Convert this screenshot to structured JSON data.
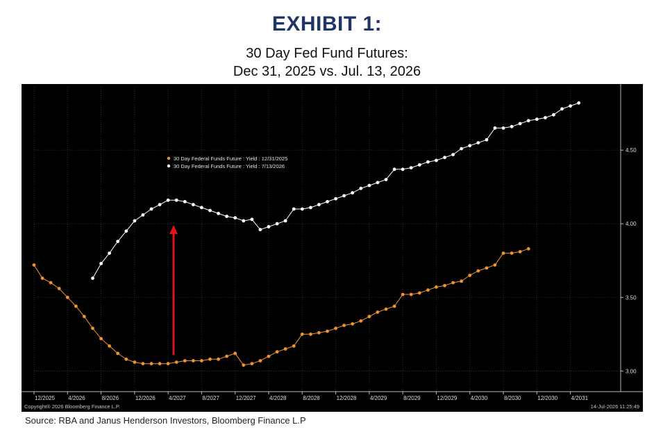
{
  "header": {
    "exhibit": "EXHIBIT 1:",
    "subtitle_line1": "30 Day Fed Fund Futures:",
    "subtitle_line2": "Dec 31, 2025 vs. Jul. 13, 2026"
  },
  "footer": {
    "source": "Source: RBA and Janus Henderson Investors, Bloomberg Finance L.P"
  },
  "chart_footer": {
    "copyright": "Copyright® 2026 Bloomberg Finance L.P.",
    "timestamp": "14-Jul-2026 11:25:49"
  },
  "colors": {
    "background": "#000000",
    "series_dec": "#f0922e",
    "series_jul": "#ffffff",
    "arrow": "#e0141e"
  },
  "chart_data": {
    "type": "line",
    "grid": true,
    "legend_position": "top-left",
    "annotation": "red upward arrow from the Dec 31, 2025 curve to the Jul 13, 2026 curve",
    "x_ticks": [
      "12/2025",
      "4/2026",
      "8/2026",
      "12/2026",
      "4/2027",
      "8/2027",
      "12/2027",
      "4/2028",
      "8/2028",
      "12/2028",
      "4/2029",
      "8/2029",
      "12/2029",
      "4/2030",
      "8/2030",
      "12/2030",
      "4/2031"
    ],
    "x_range": [
      "12/2025",
      "10/2031"
    ],
    "y_ticks": [
      "3.00",
      "3.50",
      "4.00",
      "4.50"
    ],
    "ylim": [
      2.86,
      4.93
    ],
    "series": [
      {
        "name": "30 Day Federal Funds Future : Yield : 12/31/2025",
        "color": "#f0922e",
        "start": "12/2025",
        "values": [
          3.72,
          3.63,
          3.6,
          3.56,
          3.5,
          3.44,
          3.37,
          3.29,
          3.22,
          3.17,
          3.12,
          3.08,
          3.06,
          3.05,
          3.05,
          3.05,
          3.05,
          3.06,
          3.07,
          3.07,
          3.07,
          3.08,
          3.08,
          3.1,
          3.12,
          3.04,
          3.05,
          3.07,
          3.1,
          3.13,
          3.15,
          3.17,
          3.25,
          3.25,
          3.26,
          3.27,
          3.29,
          3.31,
          3.32,
          3.34,
          3.37,
          3.4,
          3.42,
          3.44,
          3.52,
          3.52,
          3.53,
          3.55,
          3.57,
          3.58,
          3.6,
          3.61,
          3.65,
          3.68,
          3.7,
          3.72,
          3.8,
          3.8,
          3.81,
          3.83
        ]
      },
      {
        "name": "30 Day Federal Funds Future : Yield : 7/13/2026",
        "color": "#ffffff",
        "start": "7/2026",
        "values": [
          3.63,
          3.73,
          3.8,
          3.88,
          3.95,
          4.02,
          4.06,
          4.1,
          4.13,
          4.16,
          4.16,
          4.15,
          4.13,
          4.11,
          4.09,
          4.07,
          4.05,
          4.04,
          4.02,
          4.03,
          3.96,
          3.98,
          4.0,
          4.02,
          4.1,
          4.1,
          4.11,
          4.13,
          4.15,
          4.17,
          4.19,
          4.21,
          4.24,
          4.26,
          4.28,
          4.3,
          4.37,
          4.37,
          4.38,
          4.4,
          4.42,
          4.43,
          4.45,
          4.47,
          4.51,
          4.53,
          4.55,
          4.57,
          4.65,
          4.65,
          4.66,
          4.68,
          4.7,
          4.71,
          4.72,
          4.74,
          4.78,
          4.8,
          4.82
        ]
      }
    ]
  }
}
